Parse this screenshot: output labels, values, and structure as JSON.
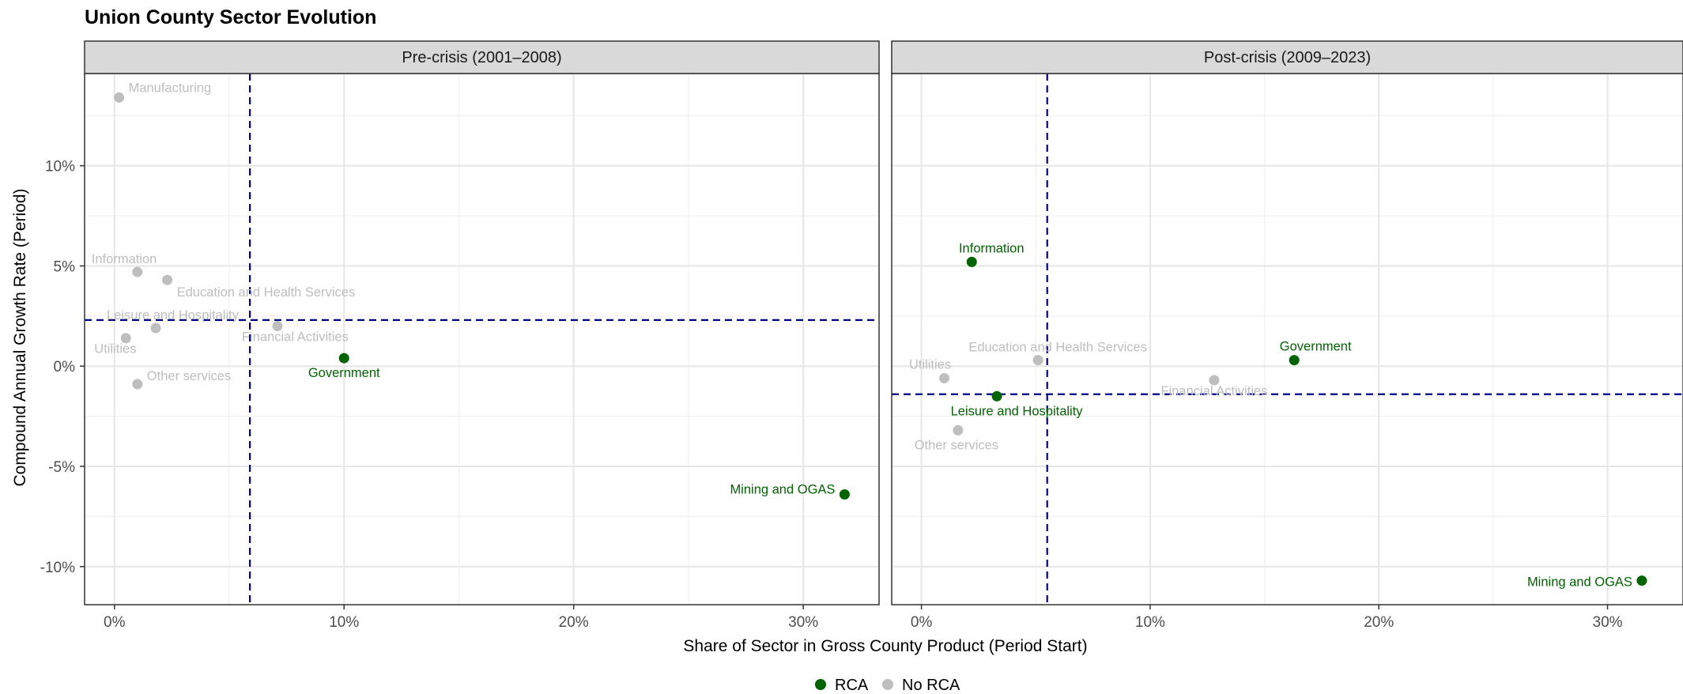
{
  "chart_data": {
    "type": "scatter",
    "title": "Union County Sector Evolution",
    "xlabel": "Share of Sector in Gross County Product (Period Start)",
    "ylabel": "Compound Annual Growth Rate (Period)",
    "xlim": [
      -1.3,
      33.3
    ],
    "ylim": [
      -11.9,
      14.6
    ],
    "xticks": [
      0,
      10,
      20,
      30
    ],
    "xtick_labels": [
      "0%",
      "10%",
      "20%",
      "30%"
    ],
    "yticks": [
      10,
      5,
      0,
      -5,
      -10
    ],
    "ytick_labels": [
      "10%",
      "5%",
      "0%",
      "-5%",
      "-10%"
    ],
    "grid": true,
    "legend": {
      "position": "bottom",
      "entries": [
        {
          "label": "RCA",
          "color": "#006400"
        },
        {
          "label": "No RCA",
          "color": "#bebebe"
        }
      ]
    },
    "panels": [
      {
        "name": "Pre-crisis (2001–2008)",
        "ref_x": 5.9,
        "ref_y": 2.3,
        "points": [
          {
            "label": "Manufacturing",
            "x": 0.2,
            "y": 13.4,
            "rca": false
          },
          {
            "label": "Information",
            "x": 1.0,
            "y": 4.7,
            "rca": false
          },
          {
            "label": "Education and Health Services",
            "x": 2.3,
            "y": 4.3,
            "rca": false
          },
          {
            "label": "Leisure and Hospitality",
            "x": 1.8,
            "y": 1.9,
            "rca": false
          },
          {
            "label": "Utilities",
            "x": 0.5,
            "y": 1.4,
            "rca": false
          },
          {
            "label": "Financial Activities",
            "x": 7.1,
            "y": 2.0,
            "rca": false
          },
          {
            "label": "Government",
            "x": 10.0,
            "y": 0.4,
            "rca": true
          },
          {
            "label": "Other services",
            "x": 1.0,
            "y": -0.9,
            "rca": false
          },
          {
            "label": "Mining and OGAS",
            "x": 31.8,
            "y": -6.4,
            "rca": true
          }
        ]
      },
      {
        "name": "Post-crisis (2009–2023)",
        "ref_x": 5.5,
        "ref_y": -1.4,
        "points": [
          {
            "label": "Information",
            "x": 2.2,
            "y": 5.2,
            "rca": true
          },
          {
            "label": "Education and Health Services",
            "x": 5.1,
            "y": 0.3,
            "rca": false
          },
          {
            "label": "Government",
            "x": 16.3,
            "y": 0.3,
            "rca": true
          },
          {
            "label": "Utilities",
            "x": 1.0,
            "y": -0.6,
            "rca": false
          },
          {
            "label": "Financial Activities",
            "x": 12.8,
            "y": -0.7,
            "rca": false
          },
          {
            "label": "Leisure and Hospitality",
            "x": 3.3,
            "y": -1.5,
            "rca": true
          },
          {
            "label": "Other services",
            "x": 1.6,
            "y": -3.2,
            "rca": false
          },
          {
            "label": "Mining and OGAS",
            "x": 31.5,
            "y": -10.7,
            "rca": true
          }
        ]
      }
    ]
  }
}
